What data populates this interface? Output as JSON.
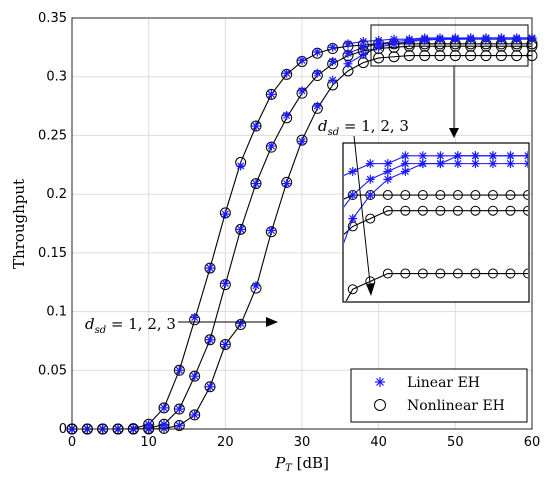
{
  "chart_data": {
    "type": "line",
    "xlabel": "P_T [dB]",
    "ylabel": "Throughput",
    "xlim": [
      0,
      60
    ],
    "ylim": [
      0,
      0.35
    ],
    "xticks": [
      0,
      10,
      20,
      30,
      40,
      50,
      60
    ],
    "yticks": [
      0,
      0.05,
      0.1,
      0.15,
      0.2,
      0.25,
      0.3,
      0.35
    ],
    "x": [
      0,
      2,
      4,
      6,
      8,
      10,
      12,
      14,
      16,
      18,
      20,
      22,
      24,
      26,
      28,
      30,
      32,
      34,
      36,
      38,
      40,
      42,
      44,
      46,
      48,
      50,
      52,
      54,
      56,
      58,
      60
    ],
    "grid": true,
    "legend": "bottom-right",
    "series": [
      {
        "name": "Linear EH",
        "marker": "asterisk",
        "color": "#1a1aff",
        "groups": [
          {
            "values": [
              0,
              0,
              0,
              0,
              0.0003,
              0.004,
              0.018,
              0.05,
              0.095,
              0.137,
              0.183,
              0.224,
              0.258,
              0.285,
              0.303,
              0.314,
              0.321,
              0.325,
              0.328,
              0.33,
              0.331,
              0.332,
              0.332,
              0.333,
              0.333,
              0.333,
              0.333,
              0.333,
              0.333,
              0.333,
              0.333
            ]
          },
          {
            "values": [
              0,
              0,
              0,
              0,
              0,
              0.0005,
              0.004,
              0.017,
              0.045,
              0.076,
              0.124,
              0.17,
              0.209,
              0.241,
              0.267,
              0.288,
              0.303,
              0.313,
              0.32,
              0.325,
              0.328,
              0.33,
              0.331,
              0.332,
              0.332,
              0.332,
              0.333,
              0.333,
              0.333,
              0.333,
              0.333
            ]
          },
          {
            "values": [
              0,
              0,
              0,
              0,
              0,
              0,
              0.0005,
              0.003,
              0.012,
              0.036,
              0.072,
              0.09,
              0.122,
              0.169,
              0.209,
              0.245,
              0.275,
              0.297,
              0.311,
              0.319,
              0.325,
              0.328,
              0.33,
              0.331,
              0.332,
              0.332,
              0.332,
              0.332,
              0.332,
              0.332,
              0.332
            ]
          }
        ]
      },
      {
        "name": "Nonlinear EH",
        "marker": "circle",
        "color": "#000000",
        "groups": [
          {
            "values": [
              0,
              0,
              0,
              0,
              0.0003,
              0.004,
              0.018,
              0.05,
              0.093,
              0.137,
              0.184,
              0.227,
              0.258,
              0.285,
              0.302,
              0.313,
              0.32,
              0.324,
              0.326,
              0.327,
              0.328,
              0.328,
              0.328,
              0.328,
              0.328,
              0.328,
              0.328,
              0.328,
              0.328,
              0.328,
              0.328
            ]
          },
          {
            "values": [
              0,
              0,
              0,
              0,
              0,
              0.0005,
              0.004,
              0.017,
              0.045,
              0.076,
              0.123,
              0.17,
              0.209,
              0.24,
              0.265,
              0.286,
              0.301,
              0.311,
              0.318,
              0.322,
              0.324,
              0.325,
              0.326,
              0.326,
              0.326,
              0.326,
              0.326,
              0.326,
              0.326,
              0.326,
              0.326
            ]
          },
          {
            "values": [
              0,
              0,
              0,
              0,
              0,
              0,
              0.0005,
              0.003,
              0.012,
              0.036,
              0.072,
              0.089,
              0.12,
              0.168,
              0.21,
              0.246,
              0.273,
              0.293,
              0.305,
              0.312,
              0.316,
              0.317,
              0.318,
              0.318,
              0.318,
              0.318,
              0.318,
              0.318,
              0.318,
              0.318,
              0.318
            ]
          }
        ]
      }
    ],
    "annotations": [
      "d_sd = 1, 2, 3",
      "d_sd = 1, 2, 3"
    ]
  }
}
